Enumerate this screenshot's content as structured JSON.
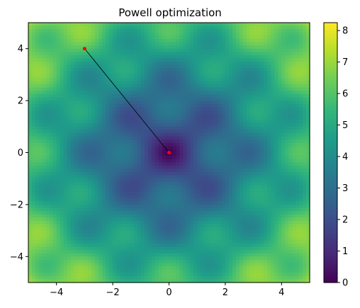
{
  "chart_data": {
    "type": "heatmap",
    "title": "Powell optimization",
    "xlabel": "",
    "ylabel": "",
    "xlim": [
      -5,
      5
    ],
    "ylim": [
      -5,
      5
    ],
    "x_ticks": [
      -4,
      -2,
      0,
      2,
      4
    ],
    "y_ticks": [
      -4,
      -2,
      0,
      2,
      4
    ],
    "x_tick_labels": [
      "−4",
      "−2",
      "0",
      "2",
      "4"
    ],
    "y_tick_labels": [
      "−4",
      "−2",
      "0",
      "2",
      "4"
    ],
    "colormap": "viridis",
    "colorbar": {
      "range": [
        0,
        8.25
      ],
      "ticks": [
        0,
        1,
        2,
        3,
        4,
        5,
        6,
        7,
        8
      ],
      "tick_labels": [
        "0",
        "1",
        "2",
        "3",
        "4",
        "5",
        "6",
        "7",
        "8"
      ],
      "placement": "right"
    },
    "grid": false,
    "surface": "sqrt(x^2 + y^2) + 1 - cos(2.2*x)*cos(2.2*y) ... estimated periodic bowl with minima near (0,0), (±3,0), (0,±3), (±3,±3); value ≈ 8.2 at corners",
    "optimization_path": {
      "color": "#000000",
      "marker_color": "#ff0000",
      "points": [
        {
          "x": -3.0,
          "y": 4.0
        },
        {
          "x": 0.0,
          "y": 0.0
        }
      ]
    }
  }
}
